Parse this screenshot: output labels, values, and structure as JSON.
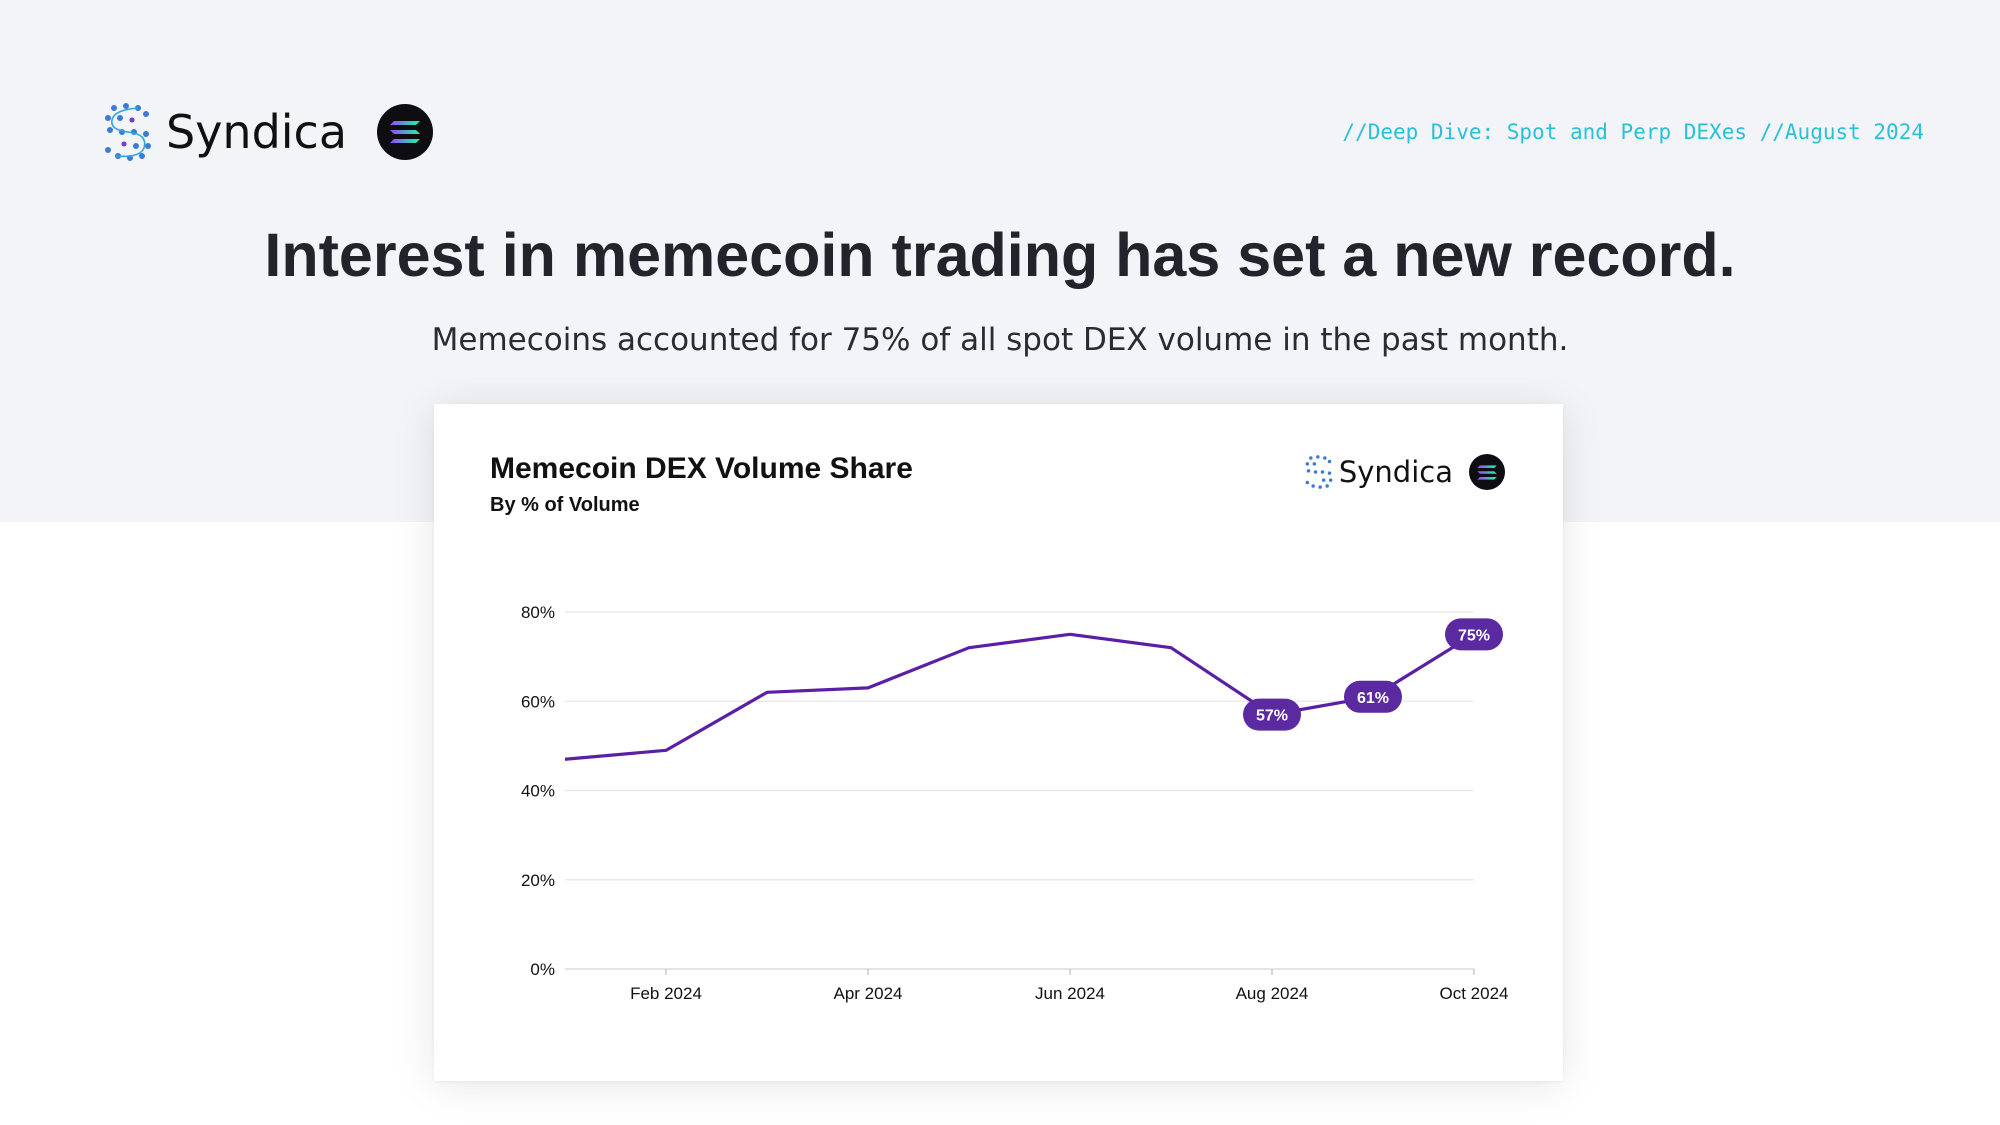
{
  "header": {
    "brand": "Syndica",
    "report_tag": "//Deep Dive: Spot and Perp DEXes //August 2024"
  },
  "headline": "Interest in memecoin trading has set a new record.",
  "subhead": "Memecoins accounted for 75% of all spot DEX volume in the past month.",
  "colors": {
    "line": "#5b1fa6",
    "label_bg": "#5b2aa0",
    "accent": "#29c1d8",
    "band": "#f3f4f8"
  },
  "chart_data": {
    "type": "line",
    "title": "Memecoin DEX Volume Share",
    "subtitle": "By % of Volume",
    "brand": "Syndica",
    "x": [
      "2024-01",
      "2024-02",
      "2024-03",
      "2024-04",
      "2024-05",
      "2024-06",
      "2024-07",
      "2024-08",
      "2024-09",
      "2024-10"
    ],
    "values": [
      47,
      49,
      62,
      63,
      72,
      75,
      72,
      57,
      61,
      75
    ],
    "point_labels": [
      null,
      null,
      null,
      null,
      null,
      null,
      null,
      "57%",
      "61%",
      "75%"
    ],
    "x_ticks": [
      "Feb 2024",
      "Apr 2024",
      "Jun 2024",
      "Aug 2024",
      "Oct 2024"
    ],
    "x_tick_positions": [
      "2024-02",
      "2024-04",
      "2024-06",
      "2024-08",
      "2024-10"
    ],
    "y_ticks": [
      "0%",
      "20%",
      "40%",
      "60%",
      "80%"
    ],
    "y_tick_values": [
      0,
      20,
      40,
      60,
      80
    ],
    "ylim": [
      0,
      80
    ],
    "grid": true,
    "legend": "none"
  }
}
